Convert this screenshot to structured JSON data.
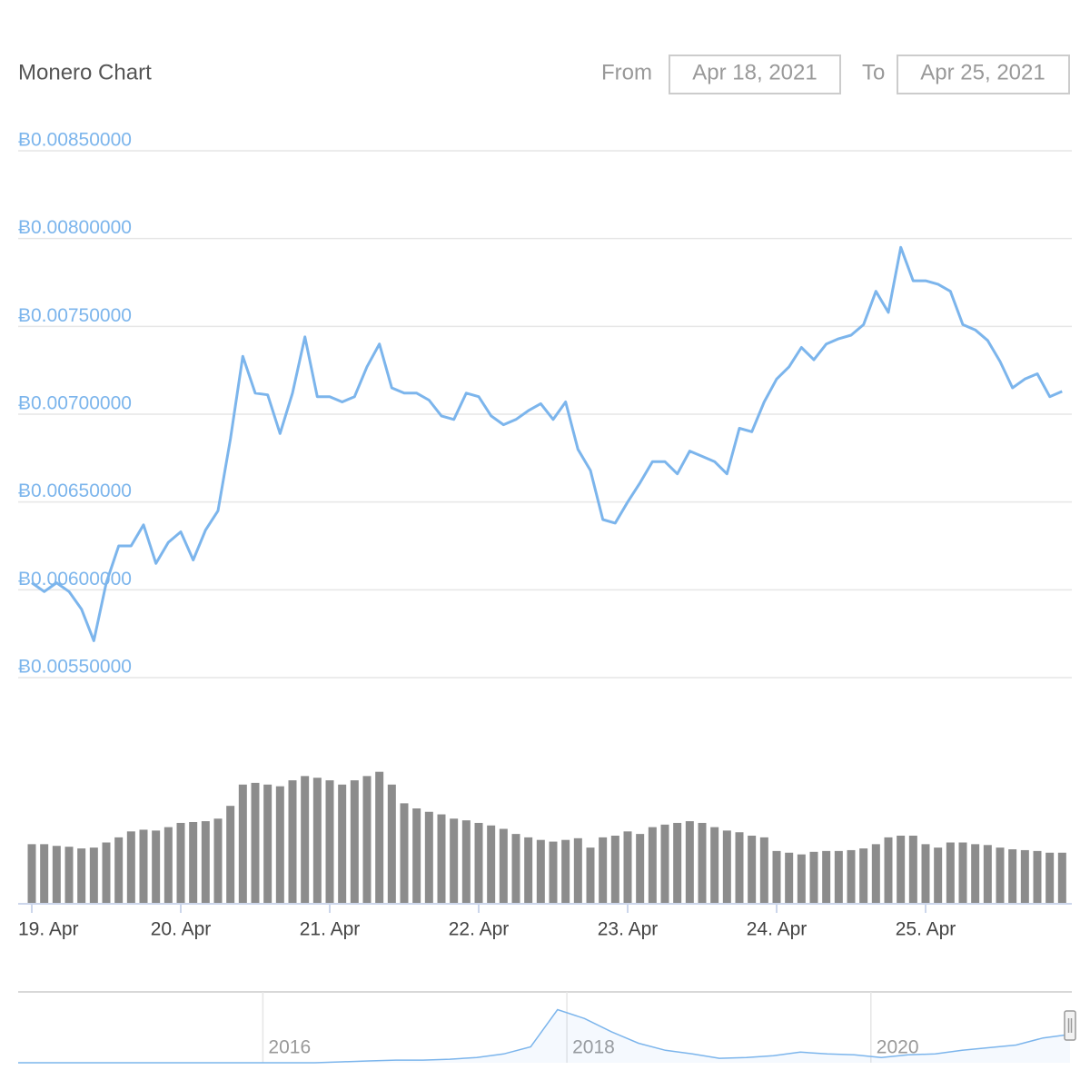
{
  "header": {
    "title": "Monero Chart",
    "from_label": "From",
    "from_date": "Apr 18, 2021",
    "to_label": "To",
    "to_date": "Apr 25, 2021"
  },
  "chart_data": {
    "type": "line",
    "color": "#7cb5ec",
    "grid": true,
    "ylim": [
      0.0055,
      0.0085
    ],
    "yticks": [
      {
        "value": 0.0055,
        "label": "Ƀ0.00550000"
      },
      {
        "value": 0.006,
        "label": "Ƀ0.00600000"
      },
      {
        "value": 0.0065,
        "label": "Ƀ0.00650000"
      },
      {
        "value": 0.007,
        "label": "Ƀ0.00700000"
      },
      {
        "value": 0.0075,
        "label": "Ƀ0.00750000"
      },
      {
        "value": 0.008,
        "label": "Ƀ0.00800000"
      },
      {
        "value": 0.0085,
        "label": "Ƀ0.00850000"
      }
    ],
    "categories": [
      "19. Apr",
      null,
      null,
      null,
      null,
      null,
      null,
      null,
      null,
      null,
      null,
      null,
      "20. Apr",
      null,
      null,
      null,
      null,
      null,
      null,
      null,
      null,
      null,
      null,
      null,
      "21. Apr",
      null,
      null,
      null,
      null,
      null,
      null,
      null,
      null,
      null,
      null,
      null,
      "22. Apr",
      null,
      null,
      null,
      null,
      null,
      null,
      null,
      null,
      null,
      null,
      null,
      "23. Apr",
      null,
      null,
      null,
      null,
      null,
      null,
      null,
      null,
      null,
      null,
      null,
      "24. Apr",
      null,
      null,
      null,
      null,
      null,
      null,
      null,
      null,
      null,
      null,
      null,
      "25. Apr",
      null,
      null,
      null,
      null,
      null,
      null,
      null,
      null,
      null,
      null,
      null
    ],
    "values": [
      0.00604,
      0.00599,
      0.00604,
      0.00599,
      0.00589,
      0.00571,
      0.00604,
      0.00625,
      0.00625,
      0.00637,
      0.00615,
      0.00627,
      0.00633,
      0.00617,
      0.00634,
      0.00645,
      0.00686,
      0.00733,
      0.00712,
      0.00711,
      0.00689,
      0.00712,
      0.00744,
      0.0071,
      0.0071,
      0.00707,
      0.0071,
      0.00727,
      0.0074,
      0.00715,
      0.00712,
      0.00712,
      0.00708,
      0.00699,
      0.00697,
      0.00712,
      0.0071,
      0.00699,
      0.00694,
      0.00697,
      0.00702,
      0.00706,
      0.00697,
      0.00707,
      0.0068,
      0.00668,
      0.0064,
      0.00638,
      0.0065,
      0.00661,
      0.00673,
      0.00673,
      0.00666,
      0.00679,
      0.00676,
      0.00673,
      0.00666,
      0.00692,
      0.0069,
      0.00707,
      0.0072,
      0.00727,
      0.00738,
      0.00731,
      0.0074,
      0.00743,
      0.00745,
      0.00751,
      0.0077,
      0.00758,
      0.00795,
      0.00776,
      0.00776,
      0.00774,
      0.0077,
      0.00751,
      0.00748,
      0.00742,
      0.0073,
      0.00715,
      0.0072,
      0.00723,
      0.0071,
      0.00713
    ],
    "volume": {
      "type": "bar",
      "color": "#8c8c8c",
      "ylim": [
        0,
        160
      ],
      "values": [
        70,
        70,
        68,
        67,
        65,
        66,
        72,
        78,
        85,
        87,
        86,
        90,
        95,
        96,
        97,
        100,
        115,
        140,
        142,
        140,
        138,
        145,
        150,
        148,
        145,
        140,
        145,
        150,
        155,
        140,
        118,
        112,
        108,
        105,
        100,
        98,
        95,
        92,
        88,
        82,
        78,
        75,
        73,
        75,
        77,
        66,
        78,
        80,
        85,
        82,
        90,
        93,
        95,
        97,
        95,
        90,
        86,
        84,
        80,
        78,
        62,
        60,
        58,
        61,
        62,
        62,
        63,
        65,
        70,
        78,
        80,
        80,
        70,
        66,
        72,
        72,
        70,
        69,
        66,
        64,
        63,
        62,
        60,
        60
      ]
    },
    "navigator": {
      "type": "area",
      "color": "#7cb5ec",
      "xlim": [
        2014.39,
        2021.31
      ],
      "xticks": [
        2016,
        2018,
        2020
      ],
      "ylim": [
        0,
        80
      ],
      "values": [
        0,
        0,
        0,
        0,
        0,
        0,
        0,
        0,
        0,
        0,
        0,
        0,
        1,
        2,
        3,
        3,
        4,
        6,
        10,
        18,
        60,
        50,
        35,
        22,
        14,
        10,
        5,
        6,
        8,
        12,
        10,
        9,
        6,
        9,
        10,
        14,
        17,
        20,
        28,
        32
      ]
    }
  }
}
